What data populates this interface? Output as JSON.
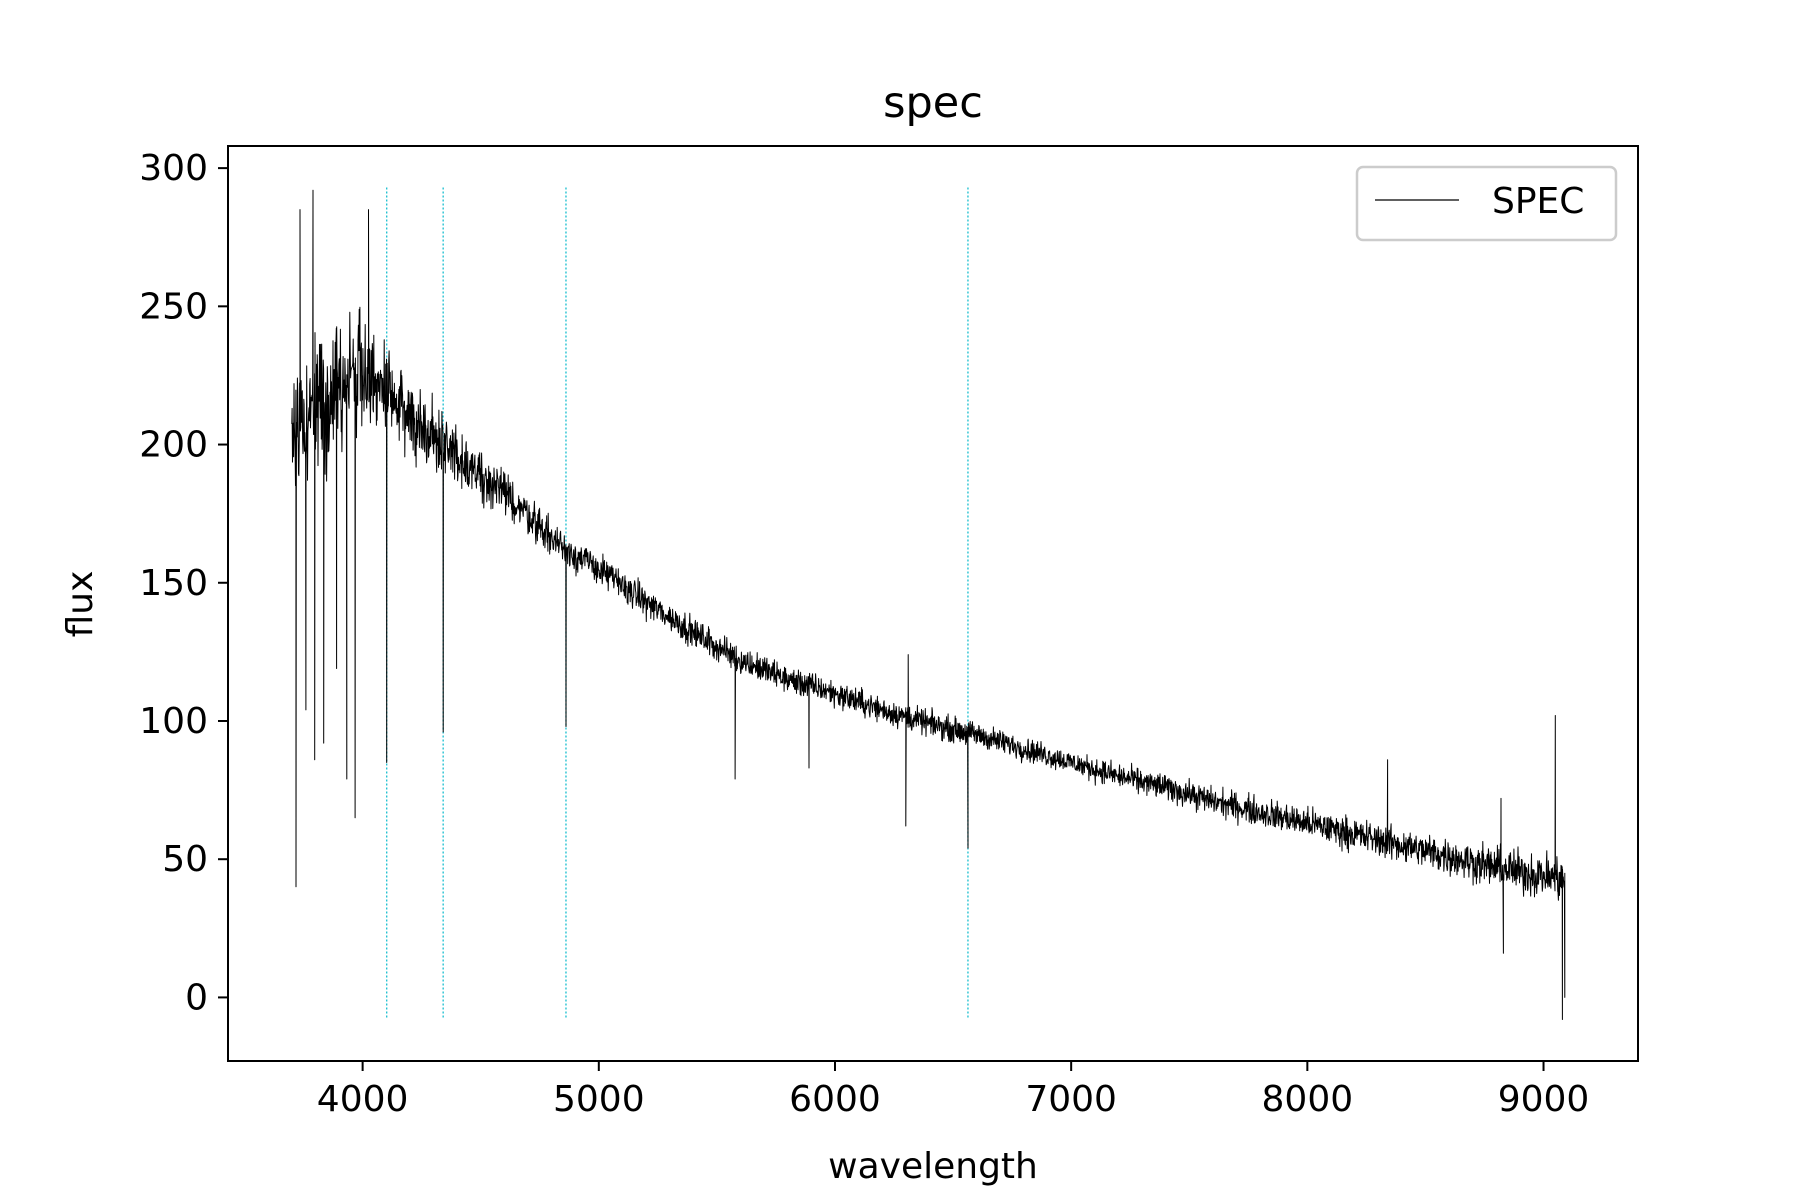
{
  "chart_data": {
    "type": "line",
    "title": "spec",
    "xlabel": "wavelength",
    "ylabel": "flux",
    "xlim": [
      3430,
      9400
    ],
    "ylim": [
      -23,
      308
    ],
    "xticks": [
      4000,
      5000,
      6000,
      7000,
      8000,
      9000
    ],
    "yticks": [
      0,
      50,
      100,
      150,
      200,
      250,
      300
    ],
    "grid": false,
    "legend": {
      "position": "upper right",
      "entries": [
        "SPEC"
      ]
    },
    "colors": {
      "spectrum": "#000000",
      "reference_lines": "#17becf"
    },
    "reference_lines": {
      "style": "dotted",
      "x": [
        4102,
        4341,
        4861,
        6563
      ],
      "ymin": -8,
      "ymax": 293
    },
    "series": [
      {
        "name": "SPEC",
        "x_range": [
          3700,
          9090
        ],
        "continuum": [
          [
            3700,
            205
          ],
          [
            3800,
            215
          ],
          [
            3900,
            222
          ],
          [
            4000,
            228
          ],
          [
            4100,
            218
          ],
          [
            4200,
            210
          ],
          [
            4300,
            203
          ],
          [
            4400,
            196
          ],
          [
            4500,
            189
          ],
          [
            4600,
            182
          ],
          [
            4700,
            175
          ],
          [
            4800,
            166
          ],
          [
            4900,
            160
          ],
          [
            5000,
            155
          ],
          [
            5200,
            143
          ],
          [
            5400,
            132
          ],
          [
            5600,
            122
          ],
          [
            5800,
            115
          ],
          [
            6000,
            110
          ],
          [
            6200,
            104
          ],
          [
            6400,
            99
          ],
          [
            6600,
            95
          ],
          [
            6800,
            90
          ],
          [
            7000,
            85
          ],
          [
            7200,
            80
          ],
          [
            7400,
            76
          ],
          [
            7600,
            71
          ],
          [
            7800,
            67
          ],
          [
            8000,
            63
          ],
          [
            8200,
            59
          ],
          [
            8400,
            55
          ],
          [
            8600,
            51
          ],
          [
            8800,
            47
          ],
          [
            9000,
            44
          ],
          [
            9060,
            43
          ]
        ],
        "features": [
          {
            "x": 3718,
            "y": 40
          },
          {
            "x": 3735,
            "y": 285
          },
          {
            "x": 3760,
            "y": 104
          },
          {
            "x": 3790,
            "y": 292
          },
          {
            "x": 3797,
            "y": 86
          },
          {
            "x": 3835,
            "y": 92
          },
          {
            "x": 3890,
            "y": 119
          },
          {
            "x": 3933,
            "y": 79
          },
          {
            "x": 3968,
            "y": 65
          },
          {
            "x": 4025,
            "y": 285
          },
          {
            "x": 4102,
            "y": 85
          },
          {
            "x": 4341,
            "y": 96
          },
          {
            "x": 4861,
            "y": 98
          },
          {
            "x": 5577,
            "y": 79
          },
          {
            "x": 5890,
            "y": 83
          },
          {
            "x": 6300,
            "y": 62
          },
          {
            "x": 6310,
            "y": 124
          },
          {
            "x": 6563,
            "y": 54
          },
          {
            "x": 8340,
            "y": 86
          },
          {
            "x": 8820,
            "y": 72
          },
          {
            "x": 8830,
            "y": 16
          },
          {
            "x": 9050,
            "y": 102
          },
          {
            "x": 9080,
            "y": -8
          },
          {
            "x": 9090,
            "y": 0
          }
        ],
        "noise_amplitude": [
          [
            3700,
            45
          ],
          [
            4100,
            25
          ],
          [
            4500,
            12
          ],
          [
            5000,
            8
          ],
          [
            7000,
            6
          ],
          [
            8500,
            9
          ],
          [
            9060,
            12
          ]
        ]
      }
    ]
  }
}
